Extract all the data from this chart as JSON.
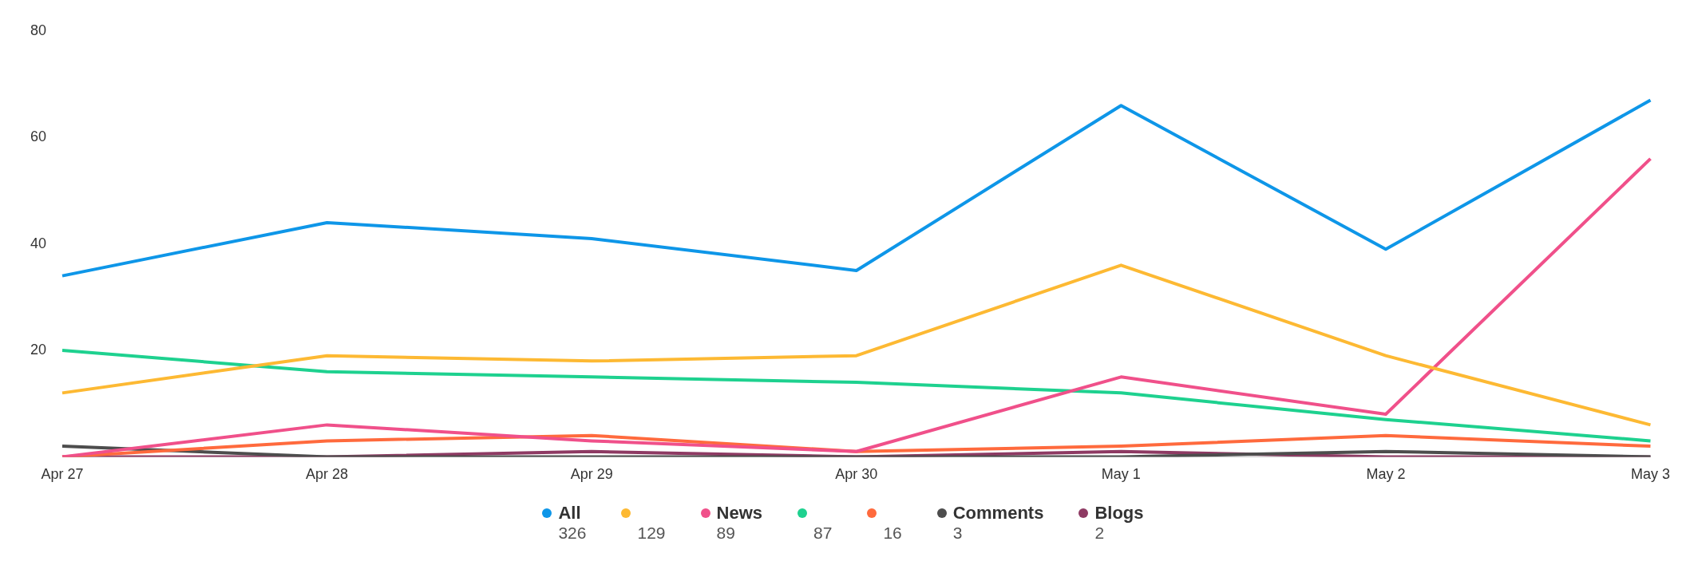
{
  "chart_data": {
    "type": "line",
    "categories": [
      "Apr 27",
      "Apr 28",
      "Apr 29",
      "Apr 30",
      "May 1",
      "May 2",
      "May 3"
    ],
    "ylim": [
      0,
      80
    ],
    "yticks": [
      20,
      40,
      60,
      80
    ],
    "grid": false,
    "legend": "bottom",
    "marker": "none",
    "line_style": "solid",
    "series": [
      {
        "name": "All",
        "color": "#0e96e8",
        "values": [
          34,
          44,
          41,
          35,
          66,
          39,
          67
        ]
      },
      {
        "color": "#fdb933",
        "values": [
          12,
          19,
          18,
          19,
          36,
          19,
          6
        ]
      },
      {
        "name": "News",
        "color": "#f0508a",
        "values": [
          0,
          6,
          3,
          1,
          15,
          8,
          56
        ]
      },
      {
        "color": "#1ed18f",
        "values": [
          20,
          16,
          15,
          14,
          12,
          7,
          3
        ]
      },
      {
        "color": "#ff6a3d",
        "values": [
          0,
          3,
          4,
          1,
          2,
          4,
          2
        ]
      },
      {
        "name": "Comments",
        "color": "#4d4d4d",
        "values": [
          2,
          0,
          0,
          0,
          0,
          1,
          0
        ]
      },
      {
        "name": "Blogs",
        "color": "#8e3a63",
        "values": [
          0,
          0,
          1,
          0,
          1,
          0,
          0
        ]
      }
    ],
    "annotations": [
      "326",
      "129",
      "89",
      "87",
      "16",
      "3",
      "2"
    ]
  }
}
